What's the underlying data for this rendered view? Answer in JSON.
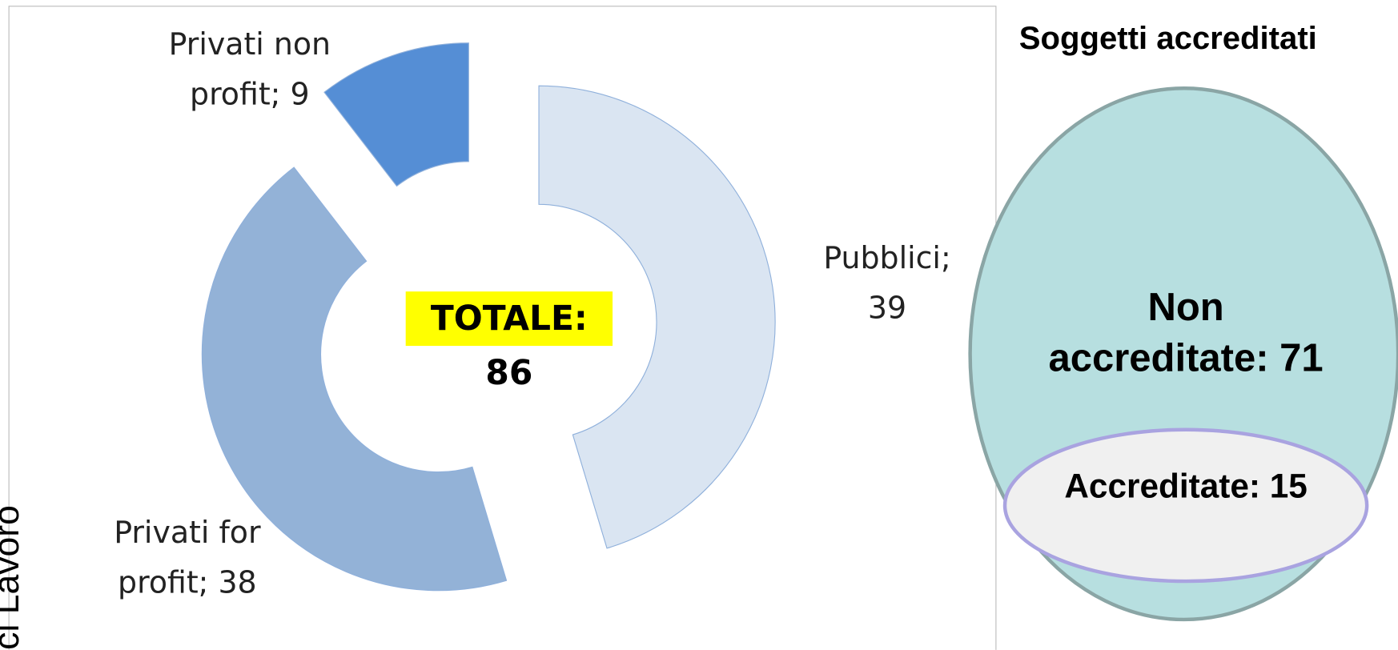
{
  "chart_data": {
    "type": "donut",
    "categories": [
      "Pubblici",
      "Privati for profit",
      "Privati non profit"
    ],
    "values": [
      39,
      38,
      9
    ],
    "value_labels": [
      "Pubblici; 39",
      "Privati for profit; 38",
      "Privati non profit; 9"
    ],
    "colors": [
      "#dae5f2",
      "#93b2d7",
      "#558ed5"
    ],
    "center_label": "TOTALE: 86"
  },
  "diagram": {
    "title": "Soggetti accreditati",
    "outer": {
      "label": "Non accreditate: 71"
    },
    "inner": {
      "label": "Accreditate: 15"
    }
  },
  "side_text": "ci Lavoro"
}
